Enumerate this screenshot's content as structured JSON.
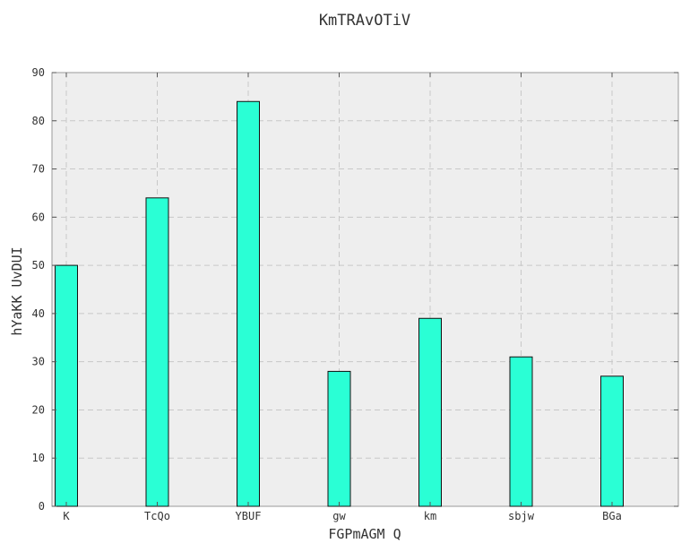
{
  "chart_data": {
    "type": "bar",
    "title": "KmTRAvOTiV",
    "xlabel": "FGPmAGM Q",
    "ylabel": "hYaKK UvDUI",
    "categories": [
      "K",
      "TcQo",
      "YBUF",
      "gw",
      "km",
      "sbjw",
      "BGa"
    ],
    "values": [
      50,
      64,
      84,
      28,
      39,
      31,
      27
    ],
    "ylim": [
      0,
      90
    ],
    "yticks": [
      0,
      10,
      20,
      30,
      40,
      50,
      60,
      70,
      80,
      90
    ],
    "grid": true,
    "bar_color": "#2affd5",
    "background": "#eeeeee"
  }
}
